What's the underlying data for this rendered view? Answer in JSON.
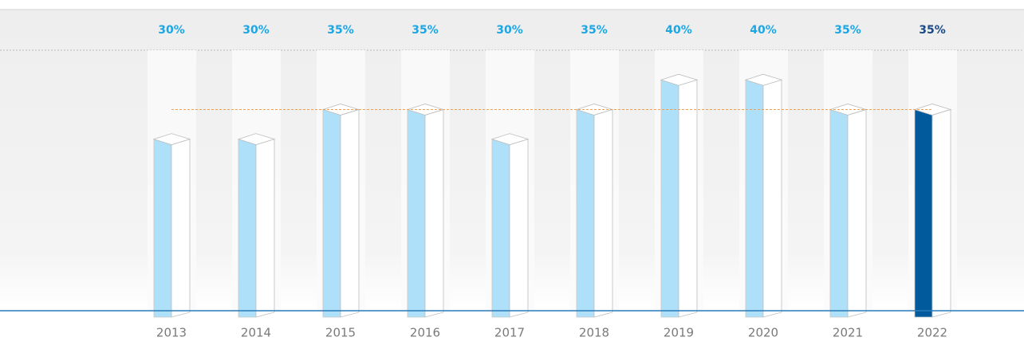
{
  "chart_data": {
    "type": "bar",
    "categories": [
      "2013",
      "2014",
      "2015",
      "2016",
      "2017",
      "2018",
      "2019",
      "2020",
      "2021",
      "2022"
    ],
    "values": [
      30,
      30,
      35,
      35,
      30,
      35,
      40,
      40,
      35,
      35
    ],
    "value_labels": [
      "30%",
      "30%",
      "35%",
      "35%",
      "30%",
      "35%",
      "40%",
      "40%",
      "35%",
      "35%"
    ],
    "colors": [
      "#aee0fa",
      "#aee0fa",
      "#aee0fa",
      "#aee0fa",
      "#aee0fa",
      "#aee0fa",
      "#aee0fa",
      "#aee0fa",
      "#aee0fa",
      "#005a9c"
    ],
    "label_colors": [
      "#1ba6e4",
      "#1ba6e4",
      "#1ba6e4",
      "#1ba6e4",
      "#1ba6e4",
      "#1ba6e4",
      "#1ba6e4",
      "#1ba6e4",
      "#1ba6e4",
      "#1a4a86"
    ],
    "reference_line": 35,
    "ylim": [
      0,
      45
    ]
  }
}
